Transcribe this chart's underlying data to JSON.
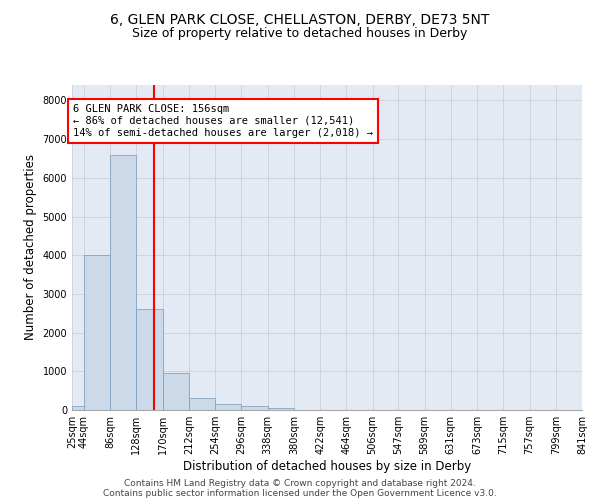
{
  "title1": "6, GLEN PARK CLOSE, CHELLASTON, DERBY, DE73 5NT",
  "title2": "Size of property relative to detached houses in Derby",
  "xlabel": "Distribution of detached houses by size in Derby",
  "ylabel": "Number of detached properties",
  "bar_color": "#ccd9e8",
  "bar_edge_color": "#7799bb",
  "grid_color": "#c8d0dc",
  "bg_color": "#e4eaf4",
  "red_line_x": 156,
  "annotation_title": "6 GLEN PARK CLOSE: 156sqm",
  "annotation_line1": "← 86% of detached houses are smaller (12,541)",
  "annotation_line2": "14% of semi-detached houses are larger (2,018) →",
  "bin_edges": [
    25,
    44,
    86,
    128,
    170,
    212,
    254,
    296,
    338,
    380,
    422,
    464,
    506,
    547,
    589,
    631,
    673,
    715,
    757,
    799,
    841
  ],
  "bar_heights": [
    100,
    4000,
    6600,
    2600,
    950,
    300,
    150,
    100,
    60,
    0,
    0,
    0,
    0,
    0,
    0,
    0,
    0,
    0,
    0,
    0
  ],
  "ylim": [
    0,
    8400
  ],
  "yticks": [
    0,
    1000,
    2000,
    3000,
    4000,
    5000,
    6000,
    7000,
    8000
  ],
  "footer_line1": "Contains HM Land Registry data © Crown copyright and database right 2024.",
  "footer_line2": "Contains public sector information licensed under the Open Government Licence v3.0.",
  "title_fontsize": 10,
  "subtitle_fontsize": 9,
  "axis_label_fontsize": 8.5,
  "tick_fontsize": 7,
  "annotation_fontsize": 7.5,
  "footer_fontsize": 6.5
}
